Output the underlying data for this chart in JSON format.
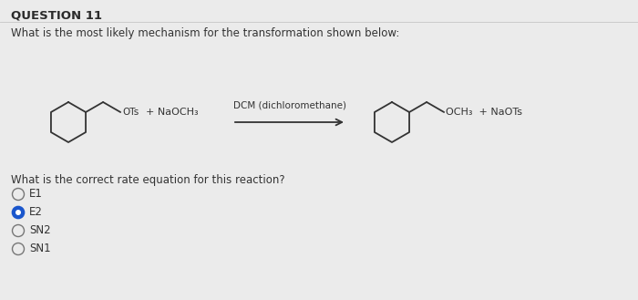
{
  "background_color": "#ebebeb",
  "title": "QUESTION 11",
  "question_text": "What is the most likely mechanism for the transformation shown below:",
  "sub_question": "What is the correct rate equation for this reaction?",
  "options": [
    "E1",
    "E2",
    "SN2",
    "SN1"
  ],
  "selected_option": 1,
  "reagent_above": "DCM (dichloromethane)",
  "left_reagents": "+ NaOCH₃",
  "left_leaving": "OTs",
  "right_products": "OCH₃  + NaOTs",
  "title_fontsize": 9.5,
  "question_fontsize": 8.5,
  "body_fontsize": 8.5,
  "title_color": "#2b2b2b",
  "text_color": "#333333"
}
